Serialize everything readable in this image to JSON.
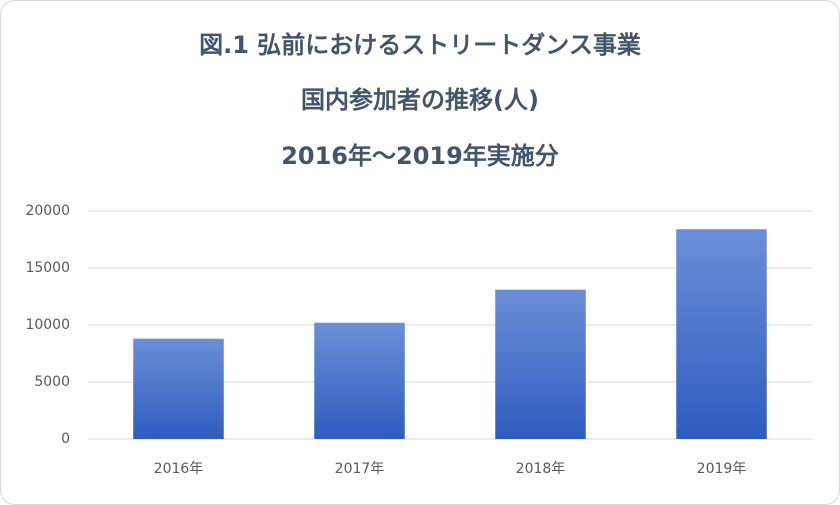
{
  "chart_data": {
    "type": "bar",
    "title": [
      "図.1 弘前におけるストリートダンス事業",
      "国内参加者の推移(人)",
      "2016年～2019年実施分"
    ],
    "categories": [
      "2016年",
      "2017年",
      "2018年",
      "2019年"
    ],
    "values": [
      8800,
      10200,
      13100,
      18400
    ],
    "color": "#4472c4",
    "ylim": [
      0,
      20000
    ],
    "yticks": [
      0,
      5000,
      10000,
      15000,
      20000
    ],
    "grid": true
  }
}
